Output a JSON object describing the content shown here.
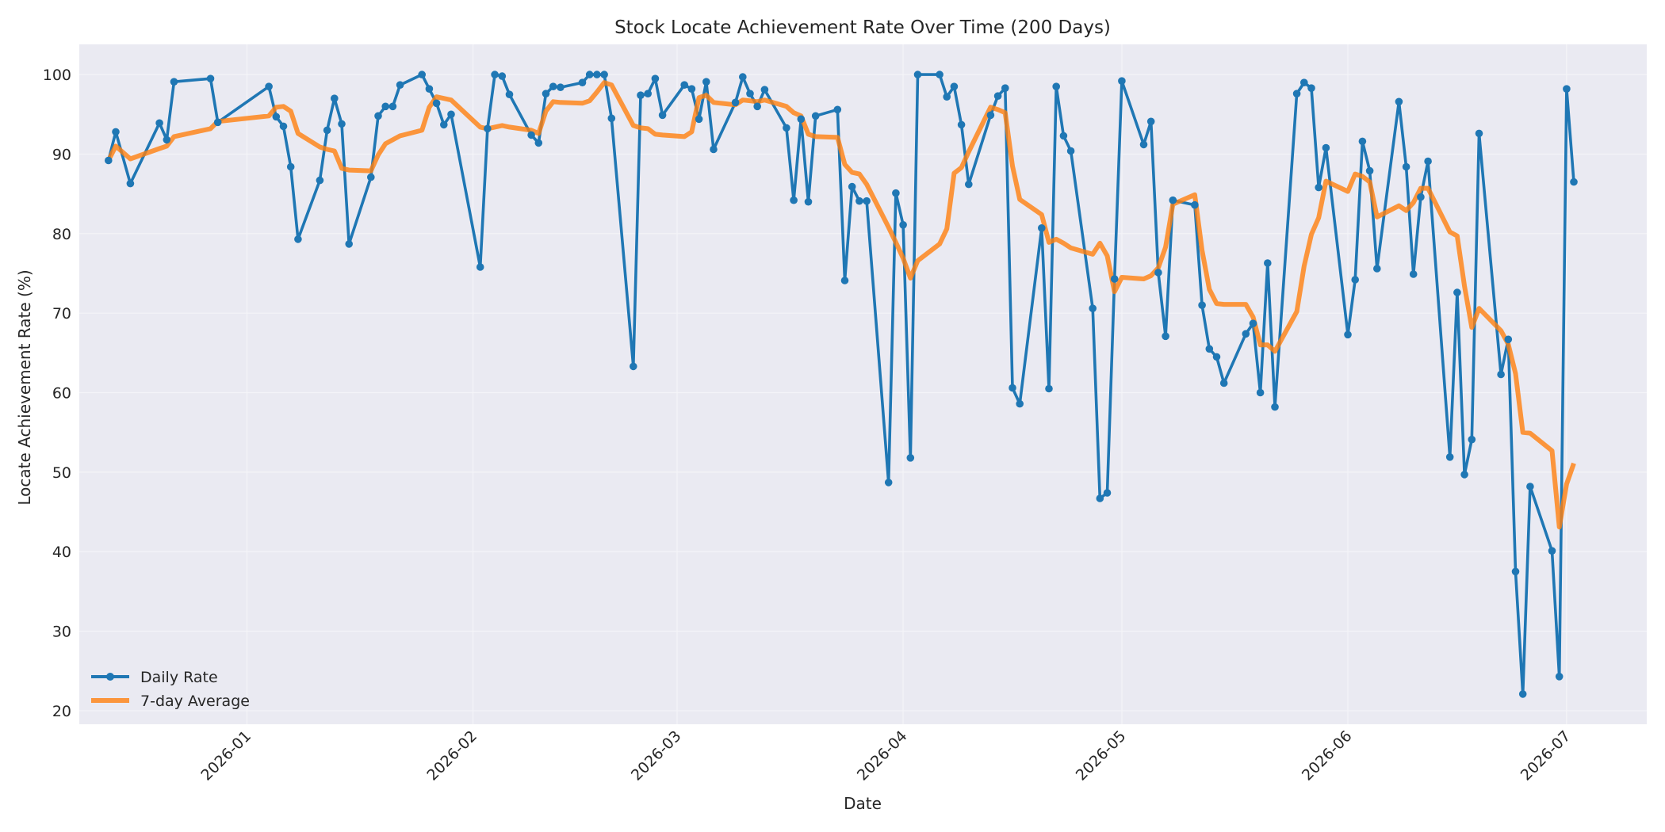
{
  "chart_data": {
    "type": "line",
    "title": "Stock Locate Achievement Rate Over Time (200 Days)",
    "xlabel": "Date",
    "ylabel": "Locate Achievement Rate (%)",
    "ylim": [
      18.3,
      103.8
    ],
    "xlim": [
      "2025-12-09",
      "2026-07-12"
    ],
    "grid": true,
    "legend_position": "lower-left",
    "x_ticks": [
      "2026-01",
      "2026-02",
      "2026-03",
      "2026-04",
      "2026-05",
      "2026-06",
      "2026-07"
    ],
    "y_ticks": [
      20,
      30,
      40,
      50,
      60,
      70,
      80,
      90,
      100
    ],
    "series": [
      {
        "name": "Daily Rate",
        "color": "#1f77b4",
        "marker": "circle",
        "x": [
          "2025-12-13",
          "2025-12-14",
          "2025-12-16",
          "2025-12-20",
          "2025-12-21",
          "2025-12-22",
          "2025-12-27",
          "2025-12-28",
          "2026-01-04",
          "2026-01-05",
          "2026-01-06",
          "2026-01-07",
          "2026-01-08",
          "2026-01-11",
          "2026-01-12",
          "2026-01-13",
          "2026-01-14",
          "2026-01-15",
          "2026-01-18",
          "2026-01-19",
          "2026-01-20",
          "2026-01-21",
          "2026-01-22",
          "2026-01-25",
          "2026-01-26",
          "2026-01-27",
          "2026-01-28",
          "2026-01-29",
          "2026-02-02",
          "2026-02-03",
          "2026-02-04",
          "2026-02-05",
          "2026-02-06",
          "2026-02-09",
          "2026-02-10",
          "2026-02-11",
          "2026-02-12",
          "2026-02-13",
          "2026-02-16",
          "2026-02-17",
          "2026-02-18",
          "2026-02-19",
          "2026-02-20",
          "2026-02-23",
          "2026-02-24",
          "2026-02-25",
          "2026-02-26",
          "2026-02-27",
          "2026-03-02",
          "2026-03-03",
          "2026-03-04",
          "2026-03-05",
          "2026-03-06",
          "2026-03-09",
          "2026-03-10",
          "2026-03-11",
          "2026-03-12",
          "2026-03-13",
          "2026-03-16",
          "2026-03-17",
          "2026-03-18",
          "2026-03-19",
          "2026-03-20",
          "2026-03-23",
          "2026-03-24",
          "2026-03-25",
          "2026-03-26",
          "2026-03-27",
          "2026-03-30",
          "2026-03-31",
          "2026-04-01",
          "2026-04-02",
          "2026-04-03",
          "2026-04-06",
          "2026-04-07",
          "2026-04-08",
          "2026-04-09",
          "2026-04-10",
          "2026-04-13",
          "2026-04-14",
          "2026-04-15",
          "2026-04-16",
          "2026-04-17",
          "2026-04-20",
          "2026-04-21",
          "2026-04-22",
          "2026-04-23",
          "2026-04-24",
          "2026-04-27",
          "2026-04-28",
          "2026-04-29",
          "2026-04-30",
          "2026-05-01",
          "2026-05-04",
          "2026-05-05",
          "2026-05-06",
          "2026-05-07",
          "2026-05-08",
          "2026-05-11",
          "2026-05-12",
          "2026-05-13",
          "2026-05-14",
          "2026-05-15",
          "2026-05-18",
          "2026-05-19",
          "2026-05-20",
          "2026-05-21",
          "2026-05-22",
          "2026-05-25",
          "2026-05-26",
          "2026-05-27",
          "2026-05-28",
          "2026-05-29",
          "2026-06-01",
          "2026-06-02",
          "2026-06-03",
          "2026-06-04",
          "2026-06-05",
          "2026-06-08",
          "2026-06-09",
          "2026-06-10",
          "2026-06-11",
          "2026-06-12",
          "2026-06-15",
          "2026-06-16",
          "2026-06-17",
          "2026-06-18",
          "2026-06-19",
          "2026-06-22",
          "2026-06-23",
          "2026-06-24",
          "2026-06-25",
          "2026-06-26",
          "2026-06-29",
          "2026-06-30",
          "2026-07-01",
          "2026-07-02"
        ],
        "y": [
          89.2,
          92.8,
          86.3,
          93.9,
          91.8,
          99.1,
          99.5,
          94.0,
          98.5,
          94.7,
          93.5,
          88.4,
          79.3,
          86.7,
          93.0,
          97.0,
          93.8,
          78.7,
          87.1,
          94.8,
          96.0,
          96.0,
          98.7,
          100.0,
          98.2,
          96.4,
          93.7,
          95.0,
          75.8,
          93.2,
          100.0,
          99.8,
          97.5,
          92.4,
          91.4,
          97.6,
          98.5,
          98.4,
          99.0,
          100.0,
          100.0,
          100.0,
          94.5,
          63.3,
          97.4,
          97.6,
          99.5,
          94.9,
          98.7,
          98.2,
          94.4,
          99.1,
          90.6,
          96.5,
          99.7,
          97.6,
          96.0,
          98.1,
          93.3,
          84.2,
          94.4,
          84.0,
          94.8,
          95.6,
          74.1,
          85.9,
          84.1,
          84.1,
          48.7,
          85.1,
          81.1,
          51.8,
          100.0,
          100.0,
          97.2,
          98.5,
          93.7,
          86.2,
          94.9,
          97.3,
          98.3,
          60.6,
          58.6,
          80.7,
          60.5,
          98.5,
          92.3,
          90.4,
          70.6,
          46.7,
          47.4,
          74.3,
          99.2,
          91.2,
          94.1,
          75.1,
          67.1,
          84.2,
          83.6,
          71.0,
          65.5,
          64.5,
          61.2,
          67.4,
          68.7,
          60.0,
          76.3,
          58.2,
          97.6,
          99.0,
          98.3,
          85.8,
          90.8,
          67.3,
          74.2,
          91.6,
          87.9,
          75.6,
          96.6,
          88.4,
          74.9,
          84.6,
          89.1,
          51.9,
          72.6,
          49.7,
          54.1,
          92.6,
          62.3,
          66.7,
          37.5,
          22.1,
          48.2,
          40.1,
          24.3,
          98.2,
          86.5
        ]
      },
      {
        "name": "7-day Average",
        "color": "#ff7f0e",
        "x": [
          "2025-12-13",
          "2025-12-14",
          "2025-12-16",
          "2025-12-20",
          "2025-12-21",
          "2025-12-22",
          "2025-12-27",
          "2025-12-28",
          "2026-01-04",
          "2026-01-05",
          "2026-01-06",
          "2026-01-07",
          "2026-01-08",
          "2026-01-11",
          "2026-01-12",
          "2026-01-13",
          "2026-01-14",
          "2026-01-15",
          "2026-01-18",
          "2026-01-19",
          "2026-01-20",
          "2026-01-21",
          "2026-01-22",
          "2026-01-25",
          "2026-01-26",
          "2026-01-27",
          "2026-01-28",
          "2026-01-29",
          "2026-02-02",
          "2026-02-03",
          "2026-02-04",
          "2026-02-05",
          "2026-02-06",
          "2026-02-09",
          "2026-02-10",
          "2026-02-11",
          "2026-02-12",
          "2026-02-13",
          "2026-02-16",
          "2026-02-17",
          "2026-02-18",
          "2026-02-19",
          "2026-02-20",
          "2026-02-23",
          "2026-02-24",
          "2026-02-25",
          "2026-02-26",
          "2026-02-27",
          "2026-03-02",
          "2026-03-03",
          "2026-03-04",
          "2026-03-05",
          "2026-03-06",
          "2026-03-09",
          "2026-03-10",
          "2026-03-11",
          "2026-03-12",
          "2026-03-13",
          "2026-03-16",
          "2026-03-17",
          "2026-03-18",
          "2026-03-19",
          "2026-03-20",
          "2026-03-23",
          "2026-03-24",
          "2026-03-25",
          "2026-03-26",
          "2026-03-27",
          "2026-03-30",
          "2026-03-31",
          "2026-04-01",
          "2026-04-02",
          "2026-04-03",
          "2026-04-06",
          "2026-04-07",
          "2026-04-08",
          "2026-04-09",
          "2026-04-10",
          "2026-04-13",
          "2026-04-14",
          "2026-04-15",
          "2026-04-16",
          "2026-04-17",
          "2026-04-20",
          "2026-04-21",
          "2026-04-22",
          "2026-04-23",
          "2026-04-24",
          "2026-04-27",
          "2026-04-28",
          "2026-04-29",
          "2026-04-30",
          "2026-05-01",
          "2026-05-04",
          "2026-05-05",
          "2026-05-06",
          "2026-05-07",
          "2026-05-08",
          "2026-05-11",
          "2026-05-12",
          "2026-05-13",
          "2026-05-14",
          "2026-05-15",
          "2026-05-18",
          "2026-05-19",
          "2026-05-20",
          "2026-05-21",
          "2026-05-22",
          "2026-05-25",
          "2026-05-26",
          "2026-05-27",
          "2026-05-28",
          "2026-05-29",
          "2026-06-01",
          "2026-06-02",
          "2026-06-03",
          "2026-06-04",
          "2026-06-05",
          "2026-06-08",
          "2026-06-09",
          "2026-06-10",
          "2026-06-11",
          "2026-06-12",
          "2026-06-15",
          "2026-06-16",
          "2026-06-17",
          "2026-06-18",
          "2026-06-19",
          "2026-06-22",
          "2026-06-23",
          "2026-06-24",
          "2026-06-25",
          "2026-06-26",
          "2026-06-29",
          "2026-06-30",
          "2026-07-01",
          "2026-07-02"
        ],
        "y": [
          89.2,
          91.0,
          89.4,
          90.7,
          91.0,
          92.2,
          93.2,
          94.1,
          94.8,
          95.9,
          96.0,
          95.4,
          92.6,
          90.9,
          90.6,
          90.4,
          88.2,
          88.0,
          87.9,
          89.9,
          91.3,
          91.8,
          92.3,
          93.0,
          95.9,
          97.2,
          97.0,
          96.8,
          93.4,
          93.2,
          93.4,
          93.6,
          93.4,
          93.0,
          92.6,
          95.4,
          96.6,
          96.5,
          96.4,
          96.7,
          97.8,
          99.0,
          98.7,
          93.6,
          93.3,
          93.2,
          92.5,
          92.4,
          92.2,
          92.8,
          97.1,
          97.4,
          96.5,
          96.2,
          96.8,
          96.7,
          96.6,
          96.8,
          96.0,
          95.2,
          94.8,
          92.5,
          92.2,
          92.1,
          88.7,
          87.7,
          87.5,
          86.2,
          80.8,
          78.9,
          76.9,
          74.4,
          76.6,
          78.7,
          80.6,
          87.6,
          88.3,
          90.3,
          95.9,
          95.6,
          95.2,
          88.5,
          84.3,
          82.4,
          78.9,
          79.3,
          78.8,
          78.2,
          77.4,
          78.8,
          77.2,
          72.7,
          74.5,
          74.3,
          74.7,
          75.7,
          78.3,
          83.7,
          84.9,
          77.9,
          73.0,
          71.2,
          71.1,
          71.1,
          69.5,
          66.0,
          66.0,
          65.2,
          70.2,
          75.9,
          79.9,
          82.0,
          86.6,
          85.3,
          87.5,
          87.2,
          86.5,
          82.1,
          83.5,
          82.9,
          83.9,
          85.7,
          85.7,
          80.2,
          79.7,
          73.4,
          68.2,
          70.6,
          67.8,
          66.1,
          62.4,
          55.0,
          54.9,
          52.7,
          43.1,
          48.5,
          51.1
        ]
      }
    ]
  }
}
